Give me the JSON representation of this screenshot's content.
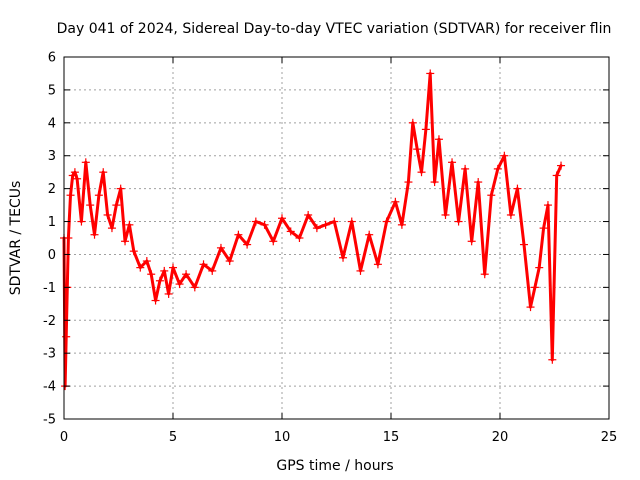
{
  "chart_data": {
    "type": "scatter",
    "title": "Day 041 of 2024, Sidereal Day-to-day VTEC variation (SDTVAR) for receiver flin",
    "xlabel": "GPS time / hours",
    "ylabel": "SDTVAR / TECUs",
    "xlim": [
      0,
      25
    ],
    "ylim": [
      -5,
      6
    ],
    "xticks": [
      0,
      5,
      10,
      15,
      20,
      25
    ],
    "yticks": [
      -5,
      -4,
      -3,
      -2,
      -1,
      0,
      1,
      2,
      3,
      4,
      5,
      6
    ],
    "grid": true,
    "marker": "+",
    "color": "#ff0000",
    "series": [
      {
        "name": "SDTVAR",
        "x": [
          0.0,
          0.05,
          0.1,
          0.15,
          0.2,
          0.3,
          0.4,
          0.5,
          0.6,
          0.8,
          1.0,
          1.2,
          1.4,
          1.6,
          1.8,
          2.0,
          2.2,
          2.4,
          2.6,
          2.8,
          3.0,
          3.2,
          3.5,
          3.8,
          4.0,
          4.2,
          4.4,
          4.6,
          4.8,
          5.0,
          5.3,
          5.6,
          6.0,
          6.4,
          6.8,
          7.2,
          7.6,
          8.0,
          8.4,
          8.8,
          9.2,
          9.6,
          10.0,
          10.4,
          10.8,
          11.2,
          11.6,
          12.0,
          12.4,
          12.8,
          13.2,
          13.6,
          14.0,
          14.4,
          14.8,
          15.2,
          15.5,
          15.8,
          16.0,
          16.2,
          16.4,
          16.6,
          16.8,
          17.0,
          17.2,
          17.5,
          17.8,
          18.1,
          18.4,
          18.7,
          19.0,
          19.3,
          19.6,
          19.9,
          20.2,
          20.5,
          20.8,
          21.1,
          21.4,
          21.6,
          21.8,
          22.0,
          22.2,
          22.4,
          22.6,
          22.8
        ],
        "y": [
          0.5,
          -4.0,
          -2.5,
          -1.0,
          0.5,
          1.8,
          2.4,
          2.5,
          2.3,
          1.0,
          2.8,
          1.5,
          0.6,
          1.8,
          2.5,
          1.2,
          0.8,
          1.5,
          2.0,
          0.4,
          0.9,
          0.1,
          -0.4,
          -0.2,
          -0.6,
          -1.4,
          -0.8,
          -0.5,
          -1.2,
          -0.4,
          -0.9,
          -0.6,
          -1.0,
          -0.3,
          -0.5,
          0.2,
          -0.2,
          0.6,
          0.3,
          1.0,
          0.9,
          0.4,
          1.1,
          0.7,
          0.5,
          1.2,
          0.8,
          0.9,
          1.0,
          -0.1,
          1.0,
          -0.5,
          0.6,
          -0.3,
          1.0,
          1.6,
          0.9,
          2.2,
          4.0,
          3.2,
          2.5,
          3.8,
          5.5,
          2.2,
          3.5,
          1.2,
          2.8,
          1.0,
          2.6,
          0.4,
          2.2,
          -0.6,
          1.8,
          2.6,
          3.0,
          1.2,
          2.0,
          0.3,
          -1.6,
          -1.0,
          -0.4,
          0.8,
          1.5,
          -3.2,
          2.4,
          2.7
        ]
      }
    ]
  }
}
